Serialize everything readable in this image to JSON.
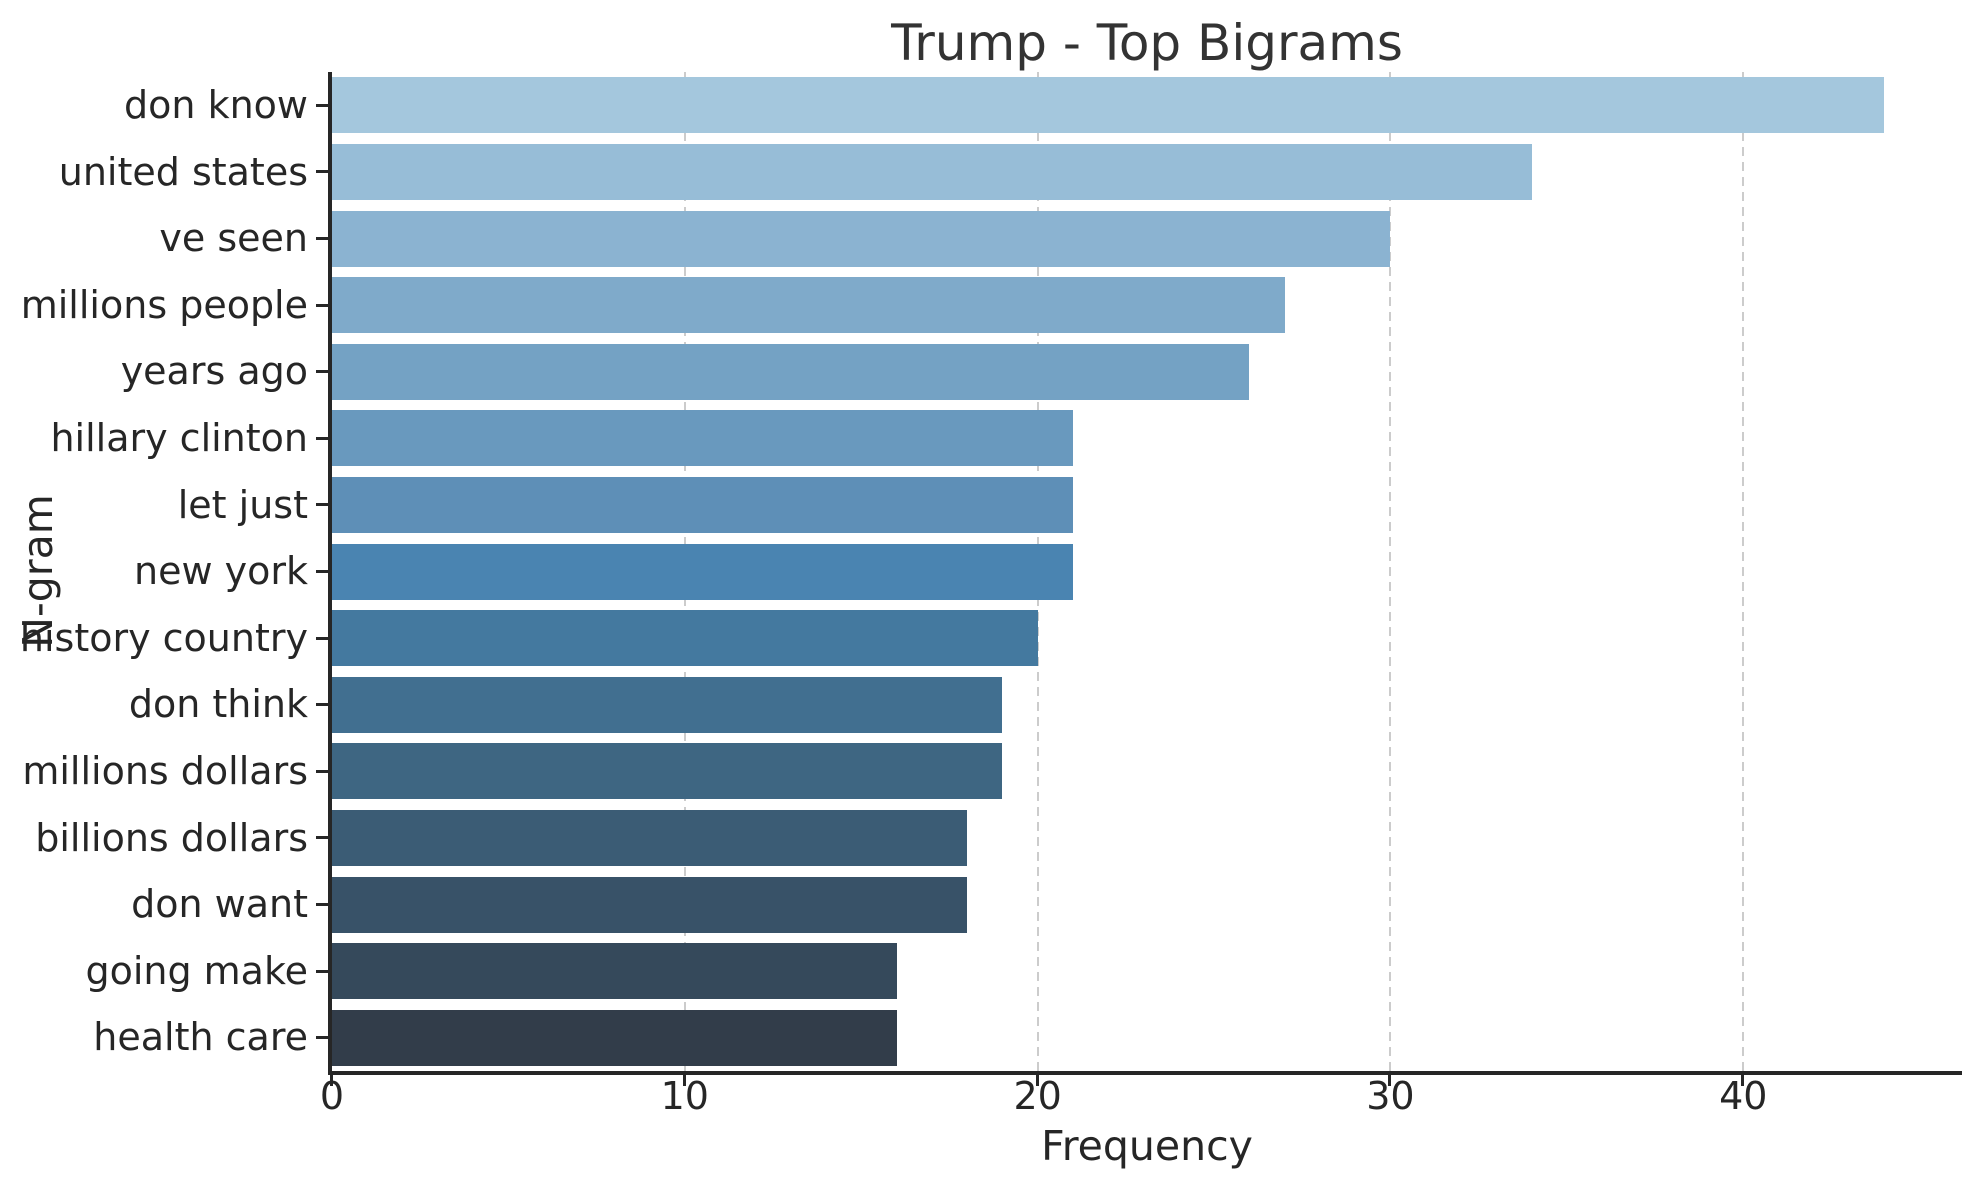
{
  "chart_data": {
    "type": "bar",
    "orientation": "horizontal",
    "title": "Trump - Top Bigrams",
    "xlabel": "Frequency",
    "ylabel": "N-gram",
    "categories": [
      "don know",
      "united states",
      "ve seen",
      "millions people",
      "years ago",
      "hillary clinton",
      "let just",
      "new york",
      "history country",
      "don think",
      "millions dollars",
      "billions dollars",
      "don want",
      "going make",
      "health care"
    ],
    "values": [
      44,
      34,
      30,
      27,
      26,
      21,
      21,
      21,
      20,
      19,
      19,
      18,
      18,
      16,
      16
    ],
    "bar_colors": [
      "#a4c7dd",
      "#97bdd7",
      "#8bb3d1",
      "#7faaca",
      "#74a2c4",
      "#6999be",
      "#5e8fb7",
      "#4a84b1",
      "#44799f",
      "#416f90",
      "#3e6682",
      "#3b5c75",
      "#385268",
      "#35495b",
      "#323d4a"
    ],
    "xlim": [
      0,
      46.2
    ],
    "x_ticks": [
      0,
      10,
      20,
      30,
      40
    ],
    "grid": "vertical-dashed",
    "grid_color": "#cccccc",
    "spine_color": "#262626",
    "text_color": "#262626",
    "background": "#ffffff"
  }
}
